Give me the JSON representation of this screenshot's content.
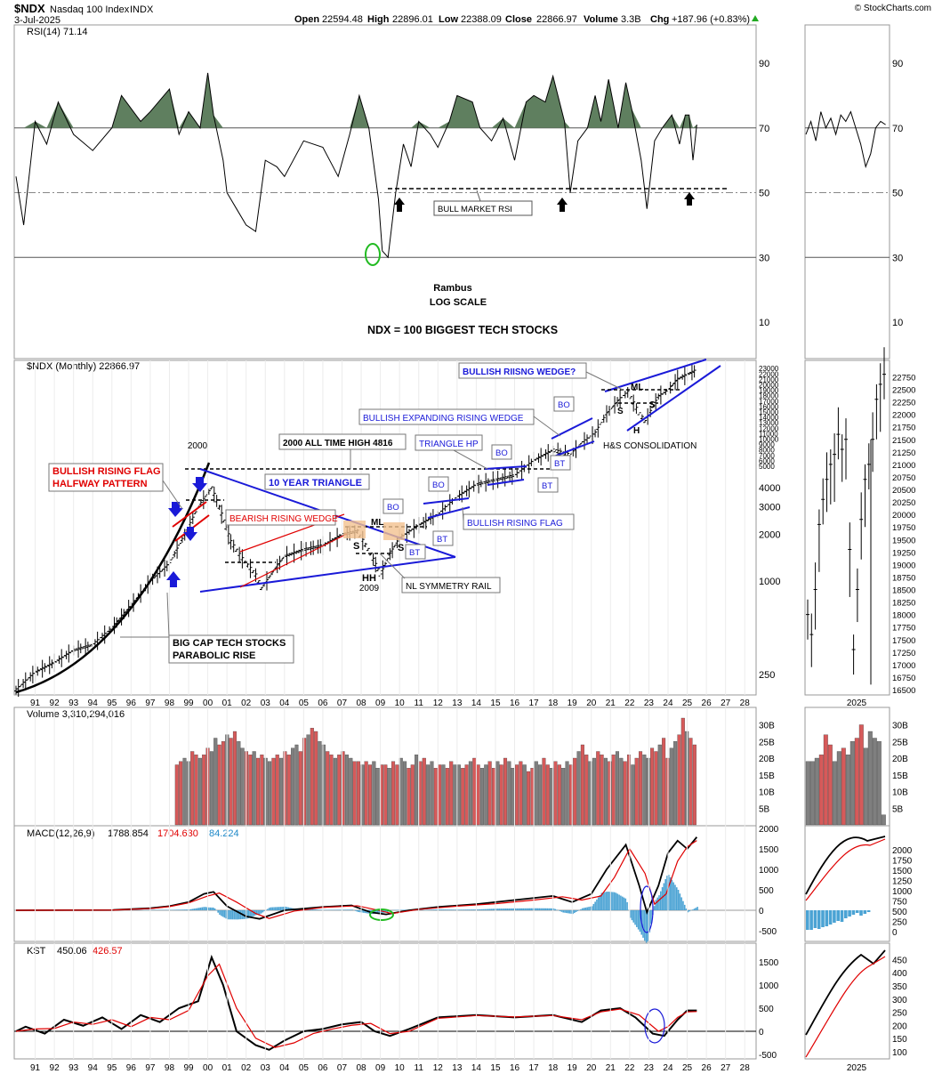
{
  "header": {
    "symbol": "$NDX",
    "name": "Nasdaq 100 Index",
    "exchange": "INDX",
    "date": "3-Jul-2025",
    "open_label": "Open",
    "open": "22594.48",
    "high_label": "High",
    "high": "22896.01",
    "low_label": "Low",
    "low": "22388.09",
    "close_label": "Close",
    "close": "22866.97",
    "volume_label": "Volume",
    "volume": "3.3B",
    "chg_label": "Chg",
    "chg": "+187.96 (+0.83%)",
    "brand": "© StockCharts.com"
  },
  "colors": {
    "up_bar": "#d65a5a",
    "down_bar": "#7f7f7f",
    "rsi_fill": "#5f7f5f",
    "macd_hist": "#4ba3d4",
    "signal": "#e00000",
    "trendline": "#1a1ad8",
    "annotation_red": "#e00000",
    "annotation_blue": "#1a1ad8",
    "green": "#22bb22"
  },
  "chart_data": [
    {
      "type": "line",
      "panel": "rsi",
      "title": "RSI(14) 71.14",
      "ylim": [
        0,
        100
      ],
      "yticks": [
        10,
        30,
        50,
        70,
        90
      ],
      "reference_lines": [
        30,
        50,
        70
      ],
      "annotations": [
        "BULL MARKET RSI",
        "Rambus",
        "LOG SCALE",
        "NDX = 100 BIGGEST TECH STOCKS"
      ],
      "series": [
        {
          "x": [
            1990.0,
            1990.4,
            1991.0,
            1991.6,
            1992.2,
            1993.0,
            1994.0,
            1995.0,
            1995.5,
            1996.5,
            1997.0,
            1998.0,
            1998.5,
            1999.0,
            1999.6,
            2000.0,
            2000.3,
            2000.8,
            2001.0,
            2001.5,
            2002.0,
            2002.5,
            2003.0,
            2003.6,
            2004.0,
            2005.0,
            2006.0,
            2006.8,
            2007.4,
            2007.9,
            2008.4,
            2008.9,
            2009.1,
            2009.4,
            2009.8,
            2010.2,
            2010.6,
            2011.0,
            2011.6,
            2012.0,
            2012.6,
            2013.0,
            2013.8,
            2014.2,
            2014.8,
            2015.4,
            2016.0,
            2016.6,
            2017.0,
            2017.6,
            2018.0,
            2018.6,
            2018.9,
            2019.3,
            2019.8,
            2020.2,
            2020.5,
            2020.9,
            2021.4,
            2021.8,
            2022.1,
            2022.6,
            2022.9,
            2023.3,
            2023.7,
            2024.2,
            2024.6,
            2024.9,
            2025.1,
            2025.3,
            2025.5
          ],
          "values": [
            55,
            40,
            72,
            65,
            78,
            68,
            63,
            70,
            80,
            72,
            75,
            82,
            68,
            75,
            70,
            87,
            74,
            60,
            50,
            45,
            40,
            38,
            60,
            58,
            55,
            66,
            64,
            55,
            68,
            80,
            70,
            48,
            32,
            30,
            50,
            65,
            58,
            72,
            68,
            64,
            72,
            80,
            78,
            70,
            66,
            73,
            60,
            78,
            80,
            78,
            86,
            72,
            50,
            66,
            70,
            80,
            72,
            85,
            70,
            84,
            76,
            60,
            45,
            66,
            70,
            74,
            65,
            74,
            74,
            60,
            71
          ]
        }
      ]
    },
    {
      "type": "candlestick",
      "panel": "price",
      "title": "$NDX (Monthly) 22866.97",
      "scale": "log",
      "yticks": [
        250,
        1000,
        2000,
        3000,
        4000,
        5000,
        6000,
        7000,
        8000,
        9000,
        10000,
        11000,
        12000,
        13000,
        14000,
        15000,
        16000,
        17000,
        18000,
        19000,
        20000,
        21000,
        22000,
        23000
      ],
      "xticks": [
        "91",
        "92",
        "93",
        "94",
        "95",
        "96",
        "97",
        "98",
        "99",
        "00",
        "01",
        "02",
        "03",
        "04",
        "05",
        "06",
        "07",
        "08",
        "09",
        "10",
        "11",
        "12",
        "13",
        "14",
        "15",
        "16",
        "17",
        "18",
        "19",
        "20",
        "21",
        "22",
        "23",
        "24",
        "25",
        "26",
        "27",
        "28"
      ],
      "x": [
        1990.0,
        1991.0,
        1992.0,
        1993.0,
        1994.0,
        1995.0,
        1996.0,
        1997.0,
        1998.0,
        1998.8,
        1999.5,
        2000.2,
        2000.6,
        2001.2,
        2001.8,
        2002.5,
        2002.8,
        2003.5,
        2004.0,
        2005.0,
        2006.0,
        2007.0,
        2007.8,
        2008.5,
        2009.0,
        2009.5,
        2010.0,
        2011.0,
        2012.0,
        2013.0,
        2014.0,
        2015.0,
        2016.0,
        2017.0,
        2018.0,
        2018.9,
        2019.5,
        2020.2,
        2020.8,
        2021.5,
        2021.9,
        2022.5,
        2022.8,
        2023.5,
        2024.0,
        2024.5,
        2025.0,
        2025.5
      ],
      "values": [
        200,
        260,
        300,
        360,
        390,
        500,
        700,
        1000,
        1300,
        2000,
        3000,
        4000,
        3000,
        1800,
        1400,
        1100,
        900,
        1200,
        1450,
        1600,
        1700,
        2000,
        2100,
        1500,
        1100,
        1500,
        1900,
        2300,
        2700,
        3500,
        4200,
        4500,
        4800,
        6000,
        7000,
        6500,
        7800,
        9000,
        12000,
        15000,
        16500,
        12000,
        10700,
        15500,
        17000,
        20000,
        21500,
        22867
      ],
      "annotations": [
        "BULLISH RISING FLAG",
        "HALFWAY PATTERN",
        "BIG CAP TECH STOCKS",
        "PARABOLIC RISE",
        "BEARISH RISING WEDGE",
        "10 YEAR TRIANGLE",
        "2000 ALL TIME HIGH 4816",
        "TRIANGLE HP",
        "BULLISH EXPANDING RISING WEDGE",
        "BULLISH RIISNG WEDGE?",
        "H&S CONSOLIDATION",
        "NL SYMMETRY RAIL",
        "BULLISH RISING FLAG",
        "BO",
        "BT",
        "ML",
        "S",
        "H",
        "HH",
        "2000",
        "2009"
      ]
    },
    {
      "type": "candlestick",
      "panel": "price-inset",
      "yticks": [
        16500,
        16750,
        17000,
        17250,
        17500,
        17750,
        18000,
        18250,
        18500,
        18750,
        19000,
        19250,
        19500,
        19750,
        20000,
        20250,
        20500,
        20750,
        21000,
        21250,
        21500,
        21750,
        22000,
        22250,
        22500,
        22750
      ],
      "xticks": [
        "2025"
      ],
      "values": [
        18000,
        17600,
        18500,
        19800,
        20300,
        20700,
        21000,
        21200,
        21600,
        21300,
        21500,
        19300,
        17300,
        18500,
        19900,
        20700,
        21000,
        21500,
        22300,
        22600,
        22800
      ]
    },
    {
      "type": "bar",
      "panel": "volume",
      "title": "Volume 3,310,294,016",
      "yticks": [
        "5B",
        "10B",
        "15B",
        "20B",
        "25B",
        "30B"
      ],
      "x_start": 1998.3,
      "x_end": 2025.5,
      "values_b": [
        18,
        19,
        20,
        19,
        22,
        21,
        20,
        21,
        23,
        22,
        26,
        24,
        25,
        27,
        26,
        28,
        25,
        23,
        22,
        21,
        22,
        20,
        21,
        20,
        19,
        20,
        21,
        20,
        22,
        21,
        23,
        24,
        22,
        26,
        27,
        29,
        28,
        25,
        24,
        22,
        21,
        20,
        21,
        22,
        21,
        20,
        19,
        19,
        18,
        19,
        18,
        19,
        17,
        18,
        18,
        17,
        19,
        18,
        20,
        19,
        17,
        18,
        21,
        19,
        20,
        18,
        19,
        17,
        18,
        18,
        17,
        19,
        18,
        18,
        17,
        18,
        19,
        20,
        18,
        17,
        18,
        19,
        17,
        19,
        18,
        20,
        19,
        17,
        18,
        19,
        18,
        16,
        17,
        19,
        18,
        20,
        18,
        17,
        19,
        18,
        17,
        19,
        18,
        20,
        22,
        24,
        21,
        19,
        20,
        22,
        21,
        20,
        19,
        21,
        22,
        20,
        19,
        21,
        18,
        20,
        22,
        21,
        20,
        23,
        22,
        24,
        26,
        20,
        23,
        25,
        27,
        32,
        28,
        26,
        24
      ]
    },
    {
      "type": "line",
      "panel": "macd",
      "title": "MACD(12,26,9)",
      "values_text": [
        "1788.854",
        "1704.630",
        "84.224"
      ],
      "yticks": [
        -500,
        0,
        500,
        1000,
        1500,
        2000
      ],
      "series": [
        {
          "name": "MACD",
          "x": [
            1990,
            1995,
            1997,
            1998,
            1999,
            1999.8,
            2000.3,
            2001,
            2002,
            2002.7,
            2004,
            2006,
            2007.5,
            2008.5,
            2009.3,
            2010.5,
            2012,
            2014,
            2016,
            2018,
            2019,
            2020,
            2020.8,
            2021.8,
            2022.5,
            2022.9,
            2023.5,
            2024,
            2024.5,
            2025,
            2025.5
          ],
          "values": [
            0,
            5,
            50,
            100,
            200,
            400,
            450,
            100,
            -150,
            -210,
            0,
            80,
            120,
            -50,
            -100,
            0,
            80,
            150,
            250,
            350,
            200,
            400,
            1000,
            1600,
            600,
            -50,
            600,
            1400,
            1700,
            1500,
            1788
          ]
        },
        {
          "name": "Signal",
          "x": [
            1990,
            1995,
            1997,
            1998,
            1999,
            2000,
            2000.6,
            2001.5,
            2002.5,
            2003.2,
            2004.5,
            2006,
            2007.8,
            2008.8,
            2009.6,
            2011,
            2013,
            2015,
            2017,
            2018.5,
            2019.5,
            2020.5,
            2021.2,
            2022,
            2022.8,
            2023.3,
            2023.9,
            2024.5,
            2025,
            2025.5
          ],
          "values": [
            0,
            5,
            40,
            90,
            180,
            350,
            420,
            200,
            -80,
            -200,
            -20,
            70,
            110,
            10,
            -80,
            20,
            100,
            160,
            250,
            330,
            250,
            350,
            800,
            1500,
            900,
            150,
            400,
            1200,
            1550,
            1704
          ]
        }
      ],
      "histogram_note": "84.224"
    },
    {
      "type": "line",
      "panel": "kst",
      "title": "KST",
      "values_text": [
        "450.06",
        "426.57"
      ],
      "yticks": [
        -500,
        0,
        500,
        1000,
        1500
      ],
      "series": [
        {
          "name": "KST",
          "x": [
            1990,
            1990.5,
            1991.5,
            1992.5,
            1993.5,
            1994.5,
            1995.5,
            1996.5,
            1997.5,
            1998.5,
            1999.5,
            2000.2,
            2000.8,
            2001.5,
            2002.5,
            2003.2,
            2004,
            2005,
            2006,
            2007,
            2008,
            2008.7,
            2009.5,
            2010.5,
            2012,
            2014,
            2016,
            2018,
            2019.5,
            2020.5,
            2021.5,
            2022.3,
            2023.2,
            2023.8,
            2024.5,
            2025,
            2025.5
          ],
          "values": [
            0,
            100,
            -50,
            250,
            120,
            300,
            50,
            350,
            200,
            500,
            650,
            1600,
            1000,
            0,
            -300,
            -400,
            -200,
            0,
            50,
            150,
            200,
            0,
            -100,
            50,
            300,
            350,
            300,
            350,
            200,
            450,
            500,
            300,
            -50,
            -100,
            250,
            450,
            450
          ]
        },
        {
          "name": "Signal",
          "x": [
            1990,
            1991,
            1992,
            1993,
            1994,
            1995,
            1996,
            1997,
            1998,
            1999,
            2000,
            2000.6,
            2001.5,
            2002.5,
            2003.5,
            2004.5,
            2005.5,
            2006.5,
            2007.5,
            2008.5,
            2009.5,
            2010.5,
            2012,
            2014,
            2016,
            2018,
            2019.5,
            2020.5,
            2021.5,
            2022.5,
            2023.5,
            2024,
            2024.5,
            2025,
            2025.5
          ],
          "values": [
            0,
            50,
            60,
            200,
            150,
            250,
            100,
            300,
            250,
            450,
            1200,
            1450,
            500,
            -150,
            -350,
            -250,
            -50,
            50,
            130,
            170,
            -50,
            0,
            280,
            340,
            310,
            340,
            250,
            420,
            480,
            350,
            0,
            100,
            300,
            420,
            427
          ]
        }
      ]
    },
    {
      "type": "line",
      "panel": "inset-indicators",
      "xticks": [
        "2025"
      ],
      "macd_inset_yticks": [
        0,
        250,
        500,
        750,
        1000,
        1250,
        1500,
        1750,
        2000
      ],
      "kst_inset_yticks": [
        100,
        150,
        200,
        250,
        300,
        350,
        400,
        450
      ],
      "volume_inset_yticks": [
        "5B",
        "10B",
        "15B",
        "20B",
        "25B",
        "30B"
      ]
    }
  ]
}
